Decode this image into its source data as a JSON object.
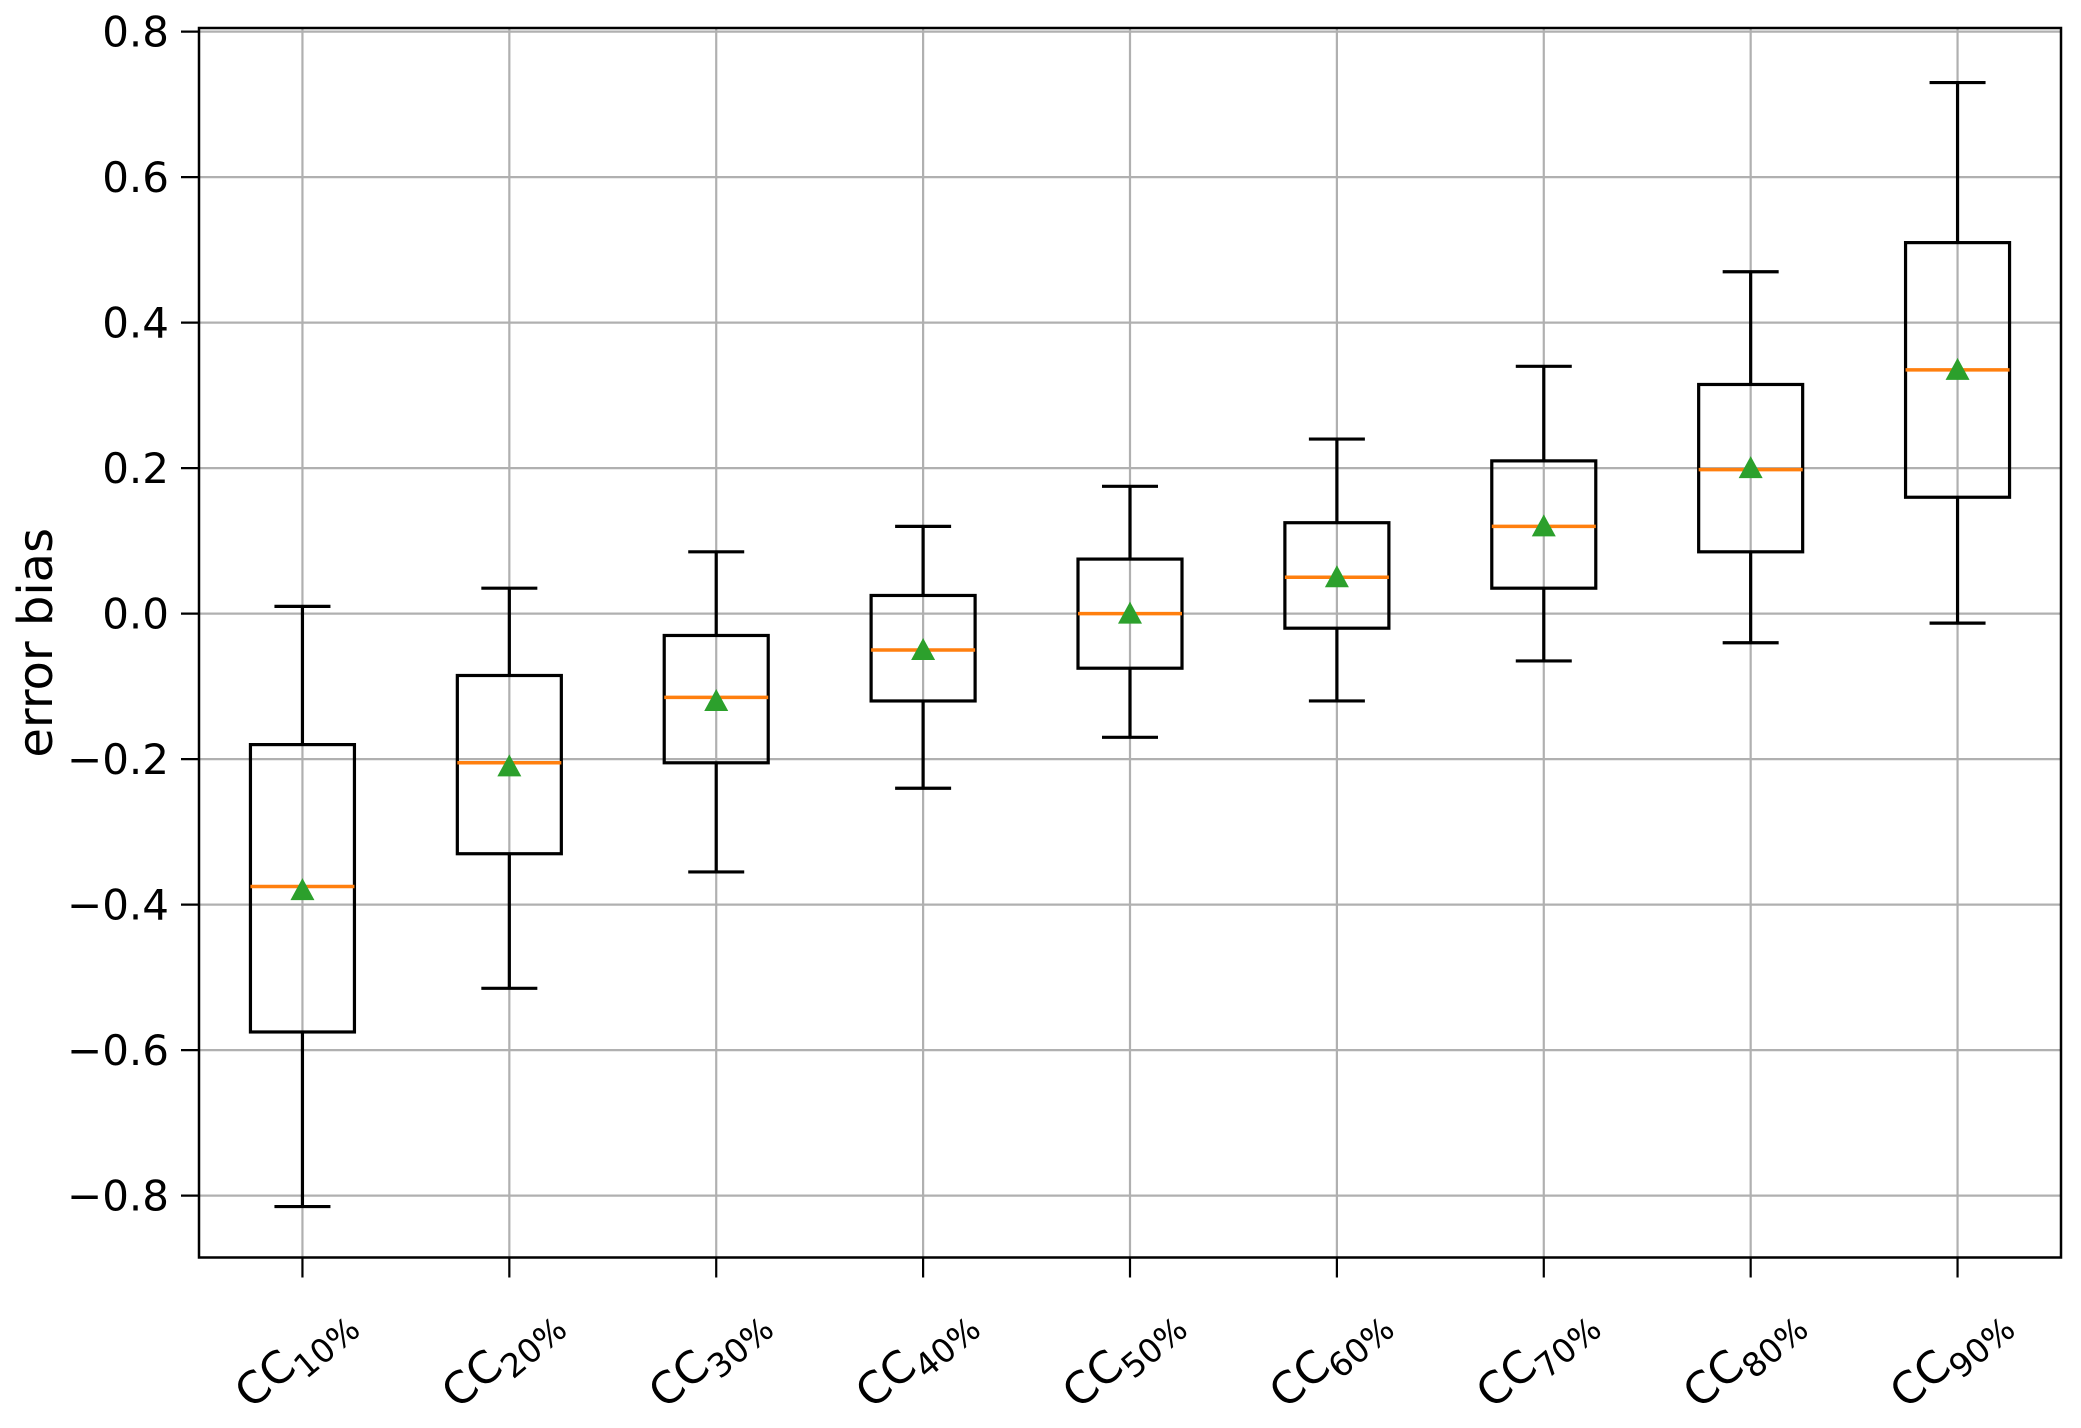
{
  "chart_data": {
    "type": "box",
    "title": "",
    "xlabel": "",
    "ylabel": "error bias",
    "ylim": [
      -0.885,
      0.805
    ],
    "yticks": [
      0.8,
      0.6,
      0.4,
      0.2,
      0.0,
      -0.2,
      -0.4,
      -0.6,
      -0.8
    ],
    "grid": true,
    "legend": "none",
    "colors": {
      "box_edge": "#000000",
      "median": "#ff7f0e",
      "mean_marker": "#2ca02c",
      "gridline": "#b0b0b0",
      "frame": "#000000",
      "background": "#ffffff"
    },
    "categories": [
      {
        "base": "CC",
        "sub": "10%",
        "label": "CC10%"
      },
      {
        "base": "CC",
        "sub": "20%",
        "label": "CC20%"
      },
      {
        "base": "CC",
        "sub": "30%",
        "label": "CC30%"
      },
      {
        "base": "CC",
        "sub": "40%",
        "label": "CC40%"
      },
      {
        "base": "CC",
        "sub": "50%",
        "label": "CC50%"
      },
      {
        "base": "CC",
        "sub": "60%",
        "label": "CC60%"
      },
      {
        "base": "CC",
        "sub": "70%",
        "label": "CC70%"
      },
      {
        "base": "CC",
        "sub": "80%",
        "label": "CC80%"
      },
      {
        "base": "CC",
        "sub": "90%",
        "label": "CC90%"
      }
    ],
    "boxes": [
      {
        "label": "CC10%",
        "whislo": -0.815,
        "q1": -0.575,
        "med": -0.375,
        "mean": -0.38,
        "q3": -0.18,
        "whishi": 0.01
      },
      {
        "label": "CC20%",
        "whislo": -0.515,
        "q1": -0.33,
        "med": -0.205,
        "mean": -0.21,
        "q3": -0.085,
        "whishi": 0.035
      },
      {
        "label": "CC30%",
        "whislo": -0.355,
        "q1": -0.205,
        "med": -0.115,
        "mean": -0.12,
        "q3": -0.03,
        "whishi": 0.085
      },
      {
        "label": "CC40%",
        "whislo": -0.24,
        "q1": -0.12,
        "med": -0.05,
        "mean": -0.05,
        "q3": 0.025,
        "whishi": 0.12
      },
      {
        "label": "CC50%",
        "whislo": -0.17,
        "q1": -0.075,
        "med": 0.0,
        "mean": 0.0,
        "q3": 0.075,
        "whishi": 0.175
      },
      {
        "label": "CC60%",
        "whislo": -0.12,
        "q1": -0.02,
        "med": 0.05,
        "mean": 0.05,
        "q3": 0.125,
        "whishi": 0.24
      },
      {
        "label": "CC70%",
        "whislo": -0.065,
        "q1": 0.035,
        "med": 0.12,
        "mean": 0.12,
        "q3": 0.21,
        "whishi": 0.34
      },
      {
        "label": "CC80%",
        "whislo": -0.04,
        "q1": 0.085,
        "med": 0.198,
        "mean": 0.2,
        "q3": 0.315,
        "whishi": 0.47
      },
      {
        "label": "CC90%",
        "whislo": -0.013,
        "q1": 0.16,
        "med": 0.335,
        "mean": 0.335,
        "q3": 0.51,
        "whishi": 0.73
      }
    ]
  }
}
